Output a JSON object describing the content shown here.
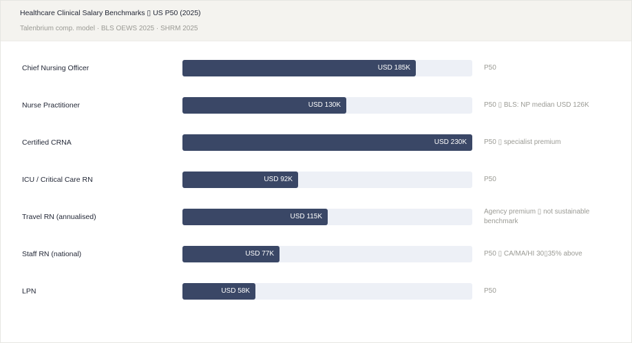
{
  "header": {
    "title": "Healthcare Clinical Salary Benchmarks ▯ US P50 (2025)",
    "subtitle": "Talenbrium comp. model · BLS OEWS 2025 · SHRM 2025"
  },
  "colors": {
    "bar": "#3a4766",
    "track": "#edf0f6",
    "header_bg": "#f4f3ef"
  },
  "chart_data": {
    "type": "bar",
    "orientation": "horizontal",
    "title": "Healthcare Clinical Salary Benchmarks ▯ US P50 (2025)",
    "subtitle": "Talenbrium comp. model · BLS OEWS 2025 · SHRM 2025",
    "xlim": [
      0,
      230
    ],
    "categories": [
      "Chief Nursing Officer",
      "Nurse Practitioner",
      "Certified CRNA",
      "ICU / Critical Care RN",
      "Travel RN (annualised)",
      "Staff RN (national)",
      "LPN"
    ],
    "values": [
      185,
      130,
      230,
      92,
      115,
      77,
      58
    ],
    "value_labels": [
      "USD 185K",
      "USD 130K",
      "USD 230K",
      "USD 92K",
      "USD 115K",
      "USD 77K",
      "USD 58K"
    ],
    "notes": [
      "P50",
      "P50 ▯ BLS: NP median USD 126K",
      "P50 ▯ specialist premium",
      "P50",
      "Agency premium ▯ not sustainable benchmark",
      "P50 ▯ CA/MA/HI 30▯35% above",
      "P50"
    ]
  }
}
